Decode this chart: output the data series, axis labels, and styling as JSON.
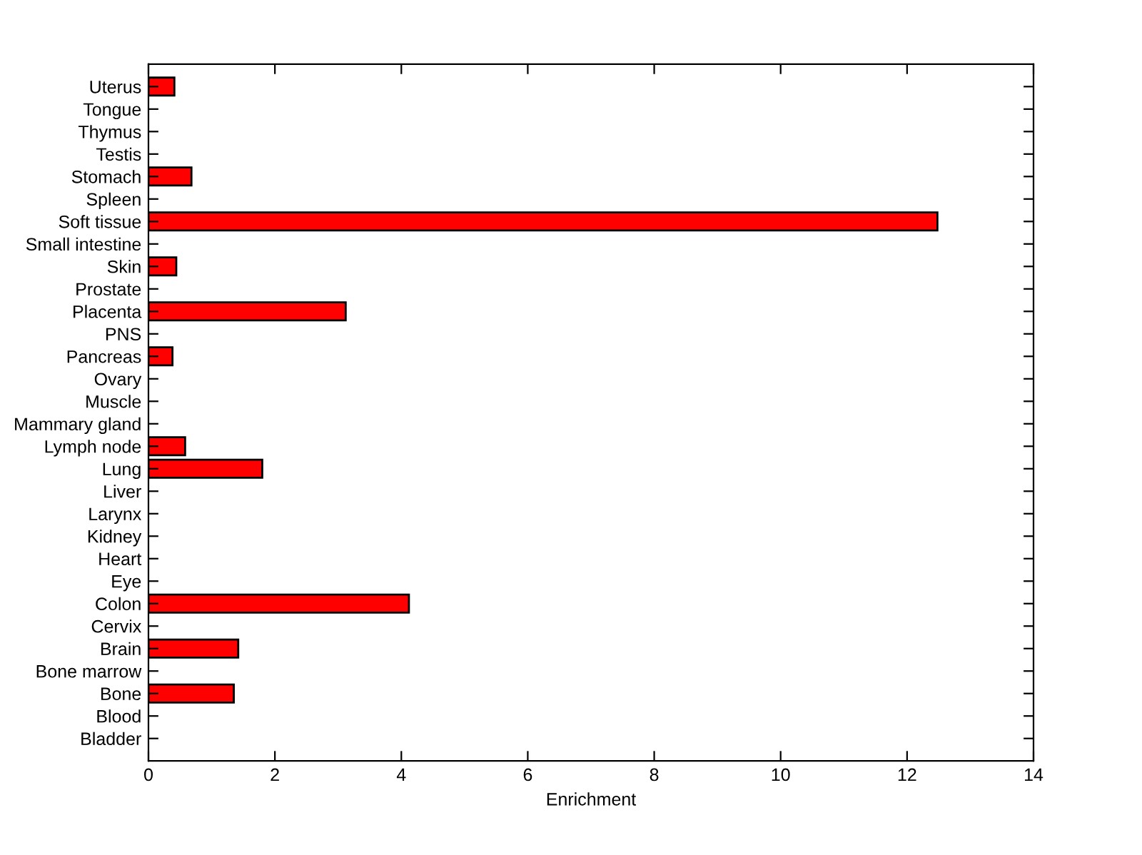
{
  "chart_data": {
    "type": "bar",
    "orientation": "horizontal",
    "xlabel": "Enrichment",
    "categories": [
      "Uterus",
      "Tongue",
      "Thymus",
      "Testis",
      "Stomach",
      "Spleen",
      "Soft tissue",
      "Small intestine",
      "Skin",
      "Prostate",
      "Placenta",
      "PNS",
      "Pancreas",
      "Ovary",
      "Muscle",
      "Mammary gland",
      "Lymph node",
      "Lung",
      "Liver",
      "Larynx",
      "Kidney",
      "Heart",
      "Eye",
      "Colon",
      "Cervix",
      "Brain",
      "Bone marrow",
      "Bone",
      "Blood",
      "Bladder"
    ],
    "values": [
      0.41,
      0,
      0,
      0,
      0.68,
      0,
      12.48,
      0,
      0.44,
      0,
      3.12,
      0,
      0.38,
      0,
      0,
      0,
      0.58,
      1.8,
      0,
      0,
      0,
      0,
      0,
      4.12,
      0,
      1.42,
      0,
      1.35,
      0,
      0
    ],
    "color": "#ff0000",
    "xlim": [
      0,
      14
    ],
    "xticks": [
      0,
      2,
      4,
      6,
      8,
      10,
      12,
      14
    ],
    "grid": false,
    "legend": false
  }
}
